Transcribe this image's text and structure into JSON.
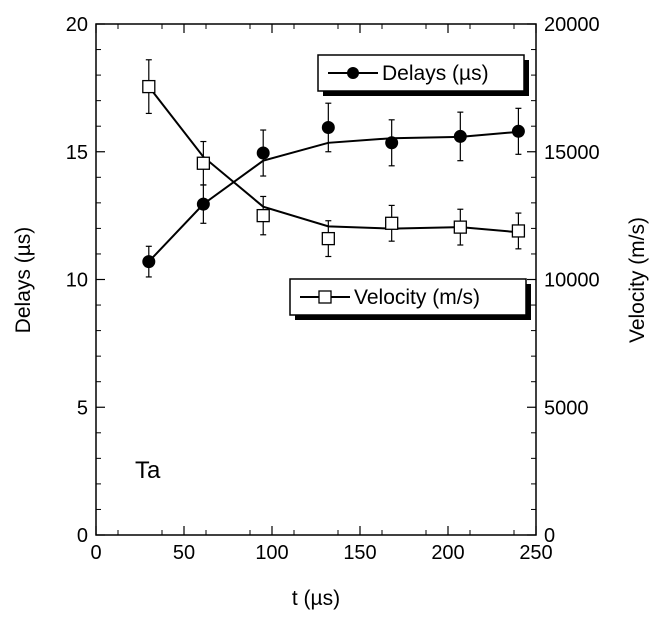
{
  "chart_data": {
    "type": "line",
    "title": "",
    "xlabel": "t (µs)",
    "ylabel": "Delays (µs)",
    "y2label": "Velocity (m/s)",
    "xlim": [
      0,
      250
    ],
    "ylim": [
      0,
      20
    ],
    "y2lim": [
      0,
      20000
    ],
    "x_ticks": [
      0,
      50,
      100,
      150,
      200,
      250
    ],
    "y_ticks": [
      0,
      5,
      10,
      15,
      20
    ],
    "y2_ticks": [
      0,
      5000,
      10000,
      15000,
      20000
    ],
    "grid": false,
    "annotation": "Ta",
    "series": [
      {
        "name": "Delays (µs)",
        "axis": "left",
        "marker": "filled-circle",
        "x": [
          30,
          61,
          95,
          132,
          168,
          207,
          240
        ],
        "y": [
          10.7,
          12.95,
          14.95,
          15.95,
          15.35,
          15.6,
          15.8
        ],
        "err": [
          0.6,
          0.75,
          0.9,
          0.95,
          0.9,
          0.95,
          0.9
        ],
        "fit": [
          [
            30,
            10.7
          ],
          [
            61,
            12.95
          ],
          [
            95,
            14.65
          ],
          [
            132,
            15.35
          ],
          [
            168,
            15.53
          ],
          [
            207,
            15.58
          ],
          [
            240,
            15.78
          ]
        ]
      },
      {
        "name": "Velocity (m/s)",
        "axis": "right",
        "marker": "open-square",
        "x": [
          30,
          61,
          95,
          132,
          168,
          207,
          240
        ],
        "y": [
          17550,
          14550,
          12500,
          11600,
          12200,
          12050,
          11900
        ],
        "err": [
          1050,
          850,
          750,
          700,
          700,
          700,
          700
        ],
        "fit": [
          [
            30,
            17550
          ],
          [
            61,
            14800
          ],
          [
            95,
            12850
          ],
          [
            132,
            12080
          ],
          [
            168,
            11990
          ],
          [
            207,
            12050
          ],
          [
            240,
            11850
          ]
        ]
      }
    ],
    "legend": [
      "top-right",
      "center-right"
    ]
  }
}
